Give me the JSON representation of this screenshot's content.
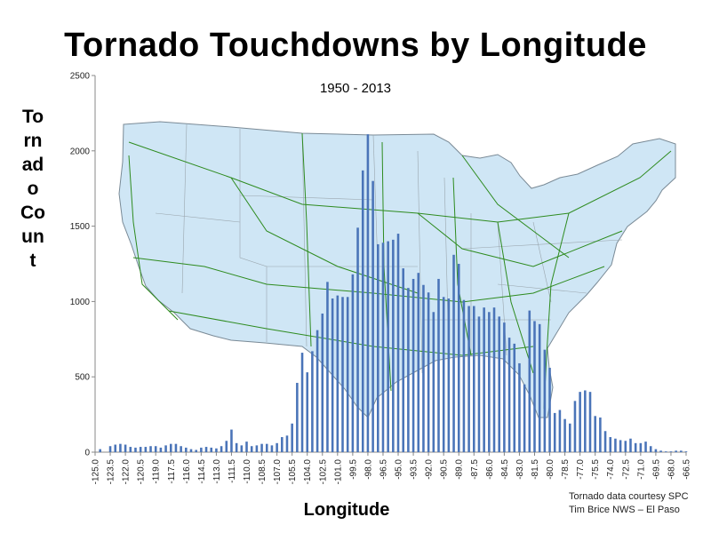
{
  "title": "Tornado Touchdowns by Longitude",
  "subtitle": "1950 - 2013",
  "ylabel": "Tornado Count",
  "xlabel": "Longitude",
  "credit": [
    "Tornado data courtesy SPC",
    "Tim Brice NWS – El Paso"
  ],
  "colors": {
    "bar": "#4a74b8",
    "map_fill": "#cfe6f5",
    "map_stroke": "#7a8a96",
    "roads": "#2e8b1f"
  },
  "background_image": "us-highway-map",
  "chart_data": {
    "type": "bar",
    "title": "Tornado Touchdowns by Longitude",
    "subtitle": "1950 - 2013",
    "xlabel": "Longitude",
    "ylabel": "Tornado Count",
    "ylim": [
      0,
      2500
    ],
    "yticks": [
      0,
      500,
      1000,
      1500,
      2000,
      2500
    ],
    "grid": false,
    "xlim": [
      -125.0,
      -66.5
    ],
    "bin_width": 0.5,
    "xtick_labels": [
      "-125.0",
      "-123.5",
      "-122.0",
      "-120.5",
      "-119.0",
      "-117.5",
      "-116.0",
      "-114.5",
      "-113.0",
      "-111.5",
      "-110.0",
      "-108.5",
      "-107.0",
      "-105.5",
      "-104.0",
      "-102.5",
      "-101.0",
      "-99.5",
      "-98.0",
      "-96.5",
      "-95.0",
      "-93.5",
      "-92.0",
      "-90.5",
      "-89.0",
      "-87.5",
      "-86.0",
      "-84.5",
      "-83.0",
      "-81.5",
      "-80.0",
      "-78.5",
      "-77.0",
      "-75.5",
      "-74.0",
      "-72.5",
      "-71.0",
      "-69.5",
      "-68.0",
      "-66.5"
    ],
    "xtick_values": [
      -125.0,
      -123.5,
      -122.0,
      -120.5,
      -119.0,
      -117.5,
      -116.0,
      -114.5,
      -113.0,
      -111.5,
      -110.0,
      -108.5,
      -107.0,
      -105.5,
      -104.0,
      -102.5,
      -101.0,
      -99.5,
      -98.0,
      -96.5,
      -95.0,
      -93.5,
      -92.0,
      -90.5,
      -89.0,
      -87.5,
      -86.0,
      -84.5,
      -83.0,
      -81.5,
      -80.0,
      -78.5,
      -77.0,
      -75.5,
      -74.0,
      -72.5,
      -71.0,
      -69.5,
      -68.0,
      -66.5
    ],
    "x": [
      -125.0,
      -124.5,
      -124.0,
      -123.5,
      -123.0,
      -122.5,
      -122.0,
      -121.5,
      -121.0,
      -120.5,
      -120.0,
      -119.5,
      -119.0,
      -118.5,
      -118.0,
      -117.5,
      -117.0,
      -116.5,
      -116.0,
      -115.5,
      -115.0,
      -114.5,
      -114.0,
      -113.5,
      -113.0,
      -112.5,
      -112.0,
      -111.5,
      -111.0,
      -110.5,
      -110.0,
      -109.5,
      -109.0,
      -108.5,
      -108.0,
      -107.5,
      -107.0,
      -106.5,
      -106.0,
      -105.5,
      -105.0,
      -104.5,
      -104.0,
      -103.5,
      -103.0,
      -102.5,
      -102.0,
      -101.5,
      -101.0,
      -100.5,
      -100.0,
      -99.5,
      -99.0,
      -98.5,
      -98.0,
      -97.5,
      -97.0,
      -96.5,
      -96.0,
      -95.5,
      -95.0,
      -94.5,
      -94.0,
      -93.5,
      -93.0,
      -92.5,
      -92.0,
      -91.5,
      -91.0,
      -90.5,
      -90.0,
      -89.5,
      -89.0,
      -88.5,
      -88.0,
      -87.5,
      -87.0,
      -86.5,
      -86.0,
      -85.5,
      -85.0,
      -84.5,
      -84.0,
      -83.5,
      -83.0,
      -82.5,
      -82.0,
      -81.5,
      -81.0,
      -80.5,
      -80.0,
      -79.5,
      -79.0,
      -78.5,
      -78.0,
      -77.5,
      -77.0,
      -76.5,
      -76.0,
      -75.5,
      -75.0,
      -74.5,
      -74.0,
      -73.5,
      -73.0,
      -72.5,
      -72.0,
      -71.5,
      -71.0,
      -70.5,
      -70.0,
      -69.5,
      -69.0,
      -68.5,
      -68.0,
      -67.5,
      -67.0,
      -66.5
    ],
    "values": [
      0,
      20,
      0,
      40,
      50,
      55,
      50,
      35,
      30,
      35,
      35,
      40,
      40,
      30,
      45,
      55,
      55,
      40,
      30,
      20,
      15,
      30,
      35,
      30,
      25,
      40,
      75,
      150,
      60,
      45,
      70,
      40,
      45,
      55,
      55,
      45,
      60,
      100,
      110,
      190,
      460,
      660,
      530,
      670,
      810,
      920,
      1130,
      1020,
      1040,
      1030,
      1030,
      1180,
      1490,
      1870,
      2110,
      1800,
      1380,
      1390,
      1400,
      1410,
      1450,
      1220,
      1090,
      1150,
      1190,
      1110,
      1060,
      930,
      1150,
      1030,
      1020,
      1310,
      1250,
      1010,
      970,
      970,
      900,
      960,
      930,
      960,
      900,
      860,
      760,
      720,
      590,
      450,
      940,
      870,
      850,
      680,
      560,
      260,
      280,
      220,
      190,
      340,
      400,
      410,
      400,
      240,
      230,
      140,
      100,
      90,
      80,
      75,
      90,
      60,
      60,
      70,
      40,
      20,
      10,
      5,
      5,
      10,
      10,
      5
    ]
  }
}
